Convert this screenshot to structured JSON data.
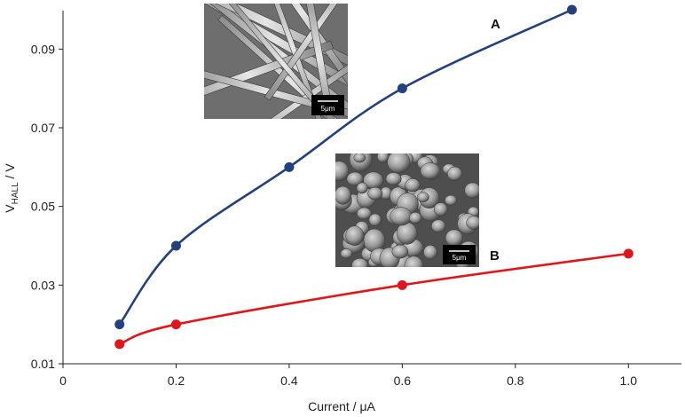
{
  "chart_data": {
    "type": "line",
    "xlabel": "Current / μA",
    "ylabel": {
      "main": "V",
      "subscript": "HALL",
      "suffix": " / V"
    },
    "xlim": [
      0,
      1.1
    ],
    "ylim": [
      0.01,
      0.1
    ],
    "x_ticks": [
      {
        "value": 0,
        "label": "0"
      },
      {
        "value": 0.2,
        "label": "0.2"
      },
      {
        "value": 0.4,
        "label": "0.4"
      },
      {
        "value": 0.6,
        "label": "0.6"
      },
      {
        "value": 0.8,
        "label": "0.8"
      },
      {
        "value": 1.0,
        "label": "1.0"
      }
    ],
    "y_ticks": [
      {
        "value": 0.01,
        "label": "0.01"
      },
      {
        "value": 0.03,
        "label": "0.03"
      },
      {
        "value": 0.05,
        "label": "0.05"
      },
      {
        "value": 0.07,
        "label": "0.07"
      },
      {
        "value": 0.09,
        "label": "0.09"
      }
    ],
    "grid": false,
    "series": [
      {
        "name": "A",
        "color": "#23407f",
        "x": [
          0.1,
          0.2,
          0.4,
          0.6,
          0.9
        ],
        "y": [
          0.02,
          0.04,
          0.06,
          0.08,
          0.1
        ]
      },
      {
        "name": "B",
        "color": "#e0161b",
        "x": [
          0.1,
          0.2,
          0.6,
          1.0
        ],
        "y": [
          0.015,
          0.02,
          0.03,
          0.038
        ]
      }
    ],
    "insets": [
      {
        "series": "A",
        "description": "SEM image of rod-like crystals",
        "scale_bar_label": "5μm"
      },
      {
        "series": "B",
        "description": "SEM image of granular particles",
        "scale_bar_label": "5μm"
      }
    ]
  }
}
